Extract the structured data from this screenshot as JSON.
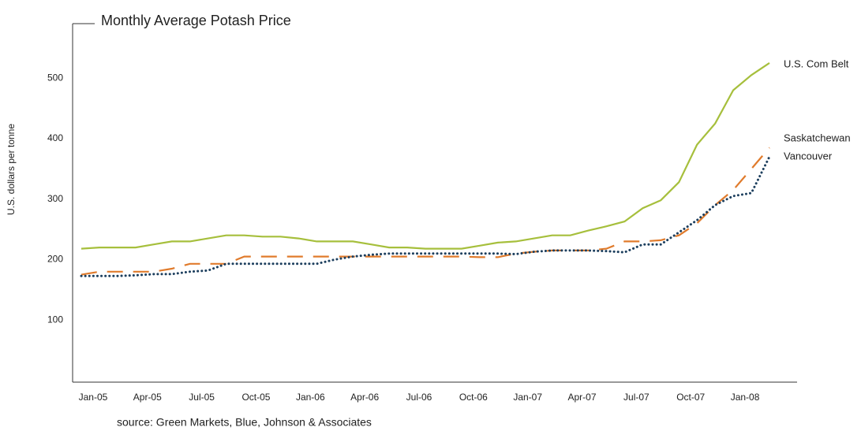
{
  "chart_data": {
    "type": "line",
    "title": "Monthly Average Potash Price",
    "y_label": "U.S. dollars per tonne",
    "source": "source: Green Markets, Blue, Johnson & Associates",
    "categories": [
      null,
      "Jan-05",
      null,
      null,
      "Apr-05",
      null,
      null,
      "Jul-05",
      null,
      null,
      "Oct-05",
      null,
      null,
      "Jan-06",
      null,
      null,
      "Apr-06",
      null,
      null,
      "Jul-06",
      null,
      null,
      "Oct-06",
      null,
      null,
      "Jan-07",
      null,
      null,
      "Apr-07",
      null,
      null,
      "Jul-07",
      null,
      null,
      "Oct-07",
      null,
      null,
      "Jan-08",
      null
    ],
    "series": [
      {
        "name": "U.S. Com Belt",
        "color": "#a6bf3c",
        "style": "solid",
        "values": [
          218,
          220,
          220,
          220,
          225,
          230,
          230,
          235,
          240,
          240,
          238,
          238,
          235,
          230,
          230,
          230,
          225,
          220,
          220,
          218,
          218,
          218,
          223,
          228,
          230,
          235,
          240,
          240,
          248,
          255,
          263,
          285,
          298,
          328,
          390,
          425,
          480,
          505,
          525
        ]
      },
      {
        "name": "Saskatchewan",
        "color": "#e07b2c",
        "style": "dashed",
        "values": [
          175,
          180,
          180,
          180,
          180,
          185,
          193,
          193,
          193,
          205,
          205,
          205,
          205,
          205,
          205,
          205,
          205,
          205,
          205,
          205,
          205,
          205,
          204,
          204,
          210,
          213,
          215,
          215,
          215,
          218,
          230,
          230,
          232,
          240,
          260,
          290,
          315,
          350,
          385
        ]
      },
      {
        "name": "Vancouver",
        "color": "#1d3f5e",
        "style": "dotted",
        "values": [
          173,
          173,
          173,
          174,
          176,
          176,
          180,
          182,
          193,
          193,
          193,
          193,
          193,
          193,
          200,
          205,
          208,
          210,
          210,
          210,
          210,
          210,
          210,
          210,
          209,
          213,
          215,
          215,
          215,
          214,
          212,
          225,
          225,
          245,
          265,
          290,
          305,
          310,
          370
        ]
      }
    ],
    "ylim": [
      0,
      590
    ],
    "yticks": [
      100,
      200,
      300,
      400,
      500
    ]
  }
}
